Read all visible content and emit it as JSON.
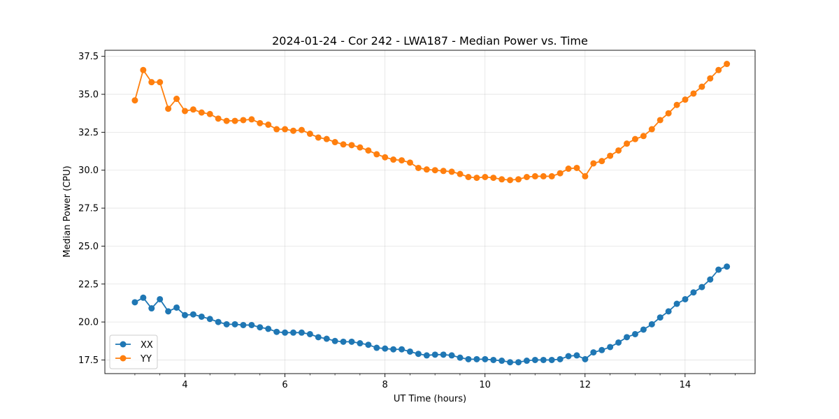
{
  "chart_data": {
    "type": "line",
    "title": "2024-01-24 - Cor 242 - LWA187 - Median Power vs. Time",
    "xlabel": "UT Time (hours)",
    "ylabel": "Median Power (CPU)",
    "xlim": [
      2.4,
      15.4
    ],
    "ylim": [
      16.6,
      37.9
    ],
    "xticks": [
      4,
      6,
      8,
      10,
      12,
      14
    ],
    "xtick_labels": [
      "4",
      "6",
      "8",
      "10",
      "12",
      "14"
    ],
    "yticks": [
      17.5,
      20.0,
      22.5,
      25.0,
      27.5,
      30.0,
      32.5,
      35.0,
      37.5
    ],
    "ytick_labels": [
      "17.5",
      "20.0",
      "22.5",
      "25.0",
      "27.5",
      "30.0",
      "32.5",
      "35.0",
      "37.5"
    ],
    "grid": true,
    "legend_position": "lower-left",
    "x_start": 3.0,
    "x_step": 0.1667,
    "series": [
      {
        "name": "XX",
        "color": "#1f77b4",
        "values": [
          21.3,
          21.6,
          20.9,
          21.5,
          20.7,
          20.95,
          20.45,
          20.5,
          20.35,
          20.2,
          20.0,
          19.85,
          19.85,
          19.8,
          19.8,
          19.65,
          19.55,
          19.35,
          19.3,
          19.3,
          19.3,
          19.2,
          19.0,
          18.9,
          18.75,
          18.7,
          18.7,
          18.6,
          18.5,
          18.3,
          18.25,
          18.2,
          18.2,
          18.05,
          17.9,
          17.8,
          17.85,
          17.85,
          17.8,
          17.65,
          17.55,
          17.55,
          17.55,
          17.5,
          17.45,
          17.35,
          17.35,
          17.45,
          17.5,
          17.5,
          17.5,
          17.55,
          17.75,
          17.8,
          17.55,
          18.0,
          18.15,
          18.35,
          18.65,
          19.0,
          19.2,
          19.5,
          19.85,
          20.3,
          20.7,
          21.2,
          21.5,
          21.95,
          22.3,
          22.8,
          23.45,
          23.65
        ]
      },
      {
        "name": "YY",
        "color": "#ff7f0e",
        "values": [
          34.6,
          36.6,
          35.8,
          35.8,
          34.05,
          34.7,
          33.9,
          34.0,
          33.8,
          33.7,
          33.4,
          33.25,
          33.25,
          33.3,
          33.35,
          33.1,
          33.0,
          32.7,
          32.7,
          32.6,
          32.65,
          32.4,
          32.15,
          32.05,
          31.85,
          31.7,
          31.65,
          31.5,
          31.3,
          31.05,
          30.85,
          30.7,
          30.65,
          30.5,
          30.15,
          30.05,
          30.0,
          29.95,
          29.9,
          29.75,
          29.55,
          29.5,
          29.55,
          29.5,
          29.4,
          29.35,
          29.4,
          29.55,
          29.6,
          29.6,
          29.6,
          29.8,
          30.1,
          30.15,
          29.6,
          30.45,
          30.6,
          30.95,
          31.3,
          31.75,
          32.05,
          32.25,
          32.7,
          33.3,
          33.75,
          34.3,
          34.65,
          35.05,
          35.5,
          36.05,
          36.6,
          37.0
        ]
      }
    ]
  }
}
